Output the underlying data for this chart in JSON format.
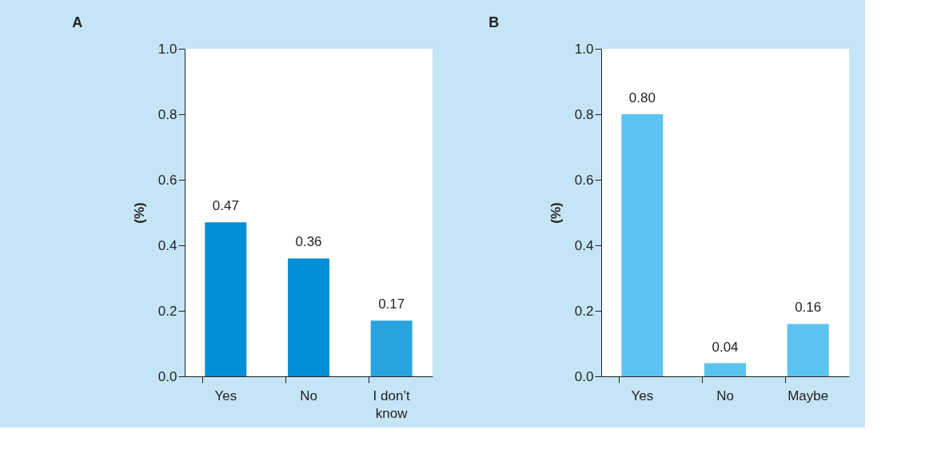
{
  "chart_data": [
    {
      "type": "bar",
      "title": "A",
      "ylabel": "(%)",
      "categories": [
        "Yes",
        "No",
        "I don’t know"
      ],
      "values": [
        0.47,
        0.36,
        0.17
      ],
      "value_labels": [
        "0.47",
        "0.36",
        "0.17"
      ],
      "colors": [
        "#008fd5",
        "#008fd5",
        "#29a3df"
      ],
      "ylim": [
        0,
        1
      ],
      "yticks": [
        {
          "value": 0,
          "label": "0.0"
        },
        {
          "value": 0.2,
          "label": "0.2"
        },
        {
          "value": 0.4,
          "label": "0.4"
        },
        {
          "value": 0.6,
          "label": "0.6"
        },
        {
          "value": 0.8,
          "label": "0.8"
        },
        {
          "value": 1,
          "label": "1.0"
        }
      ]
    },
    {
      "type": "bar",
      "title": "B",
      "ylabel": "(%)",
      "categories": [
        "Yes",
        "No",
        "Maybe"
      ],
      "values": [
        0.8,
        0.04,
        0.16
      ],
      "value_labels": [
        "0.80",
        "0.04",
        "0.16"
      ],
      "colors": [
        "#5bc3f0",
        "#5bc3f0",
        "#5bc3f0"
      ],
      "ylim": [
        0,
        1
      ],
      "yticks": [
        {
          "value": 0,
          "label": "0.0"
        },
        {
          "value": 0.2,
          "label": "0.2"
        },
        {
          "value": 0.4,
          "label": "0.4"
        },
        {
          "value": 0.6,
          "label": "0.6"
        },
        {
          "value": 0.8,
          "label": "0.8"
        },
        {
          "value": 1,
          "label": "1.0"
        }
      ]
    }
  ]
}
